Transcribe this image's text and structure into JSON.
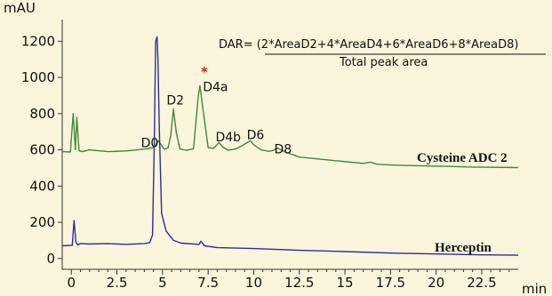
{
  "chart_data": {
    "type": "line",
    "title": "",
    "xlabel": "min",
    "ylabel": "mAU",
    "xlim": [
      -0.5,
      24.5
    ],
    "ylim": [
      -60,
      1300
    ],
    "x_ticks": [
      0,
      2.5,
      5,
      7.5,
      10,
      12.5,
      15,
      17.5,
      20,
      22.5
    ],
    "x_tick_labels": [
      "0",
      "2.5",
      "5",
      "7.5",
      "10",
      "12.5",
      "15",
      "17.5",
      "20",
      "22.5"
    ],
    "y_ticks": [
      0,
      200,
      400,
      600,
      800,
      1000,
      1200
    ],
    "y_tick_labels": [
      "0",
      "200",
      "400",
      "600",
      "800",
      "1000",
      "1200"
    ],
    "formula": {
      "numerator": "DAR= (2*AreaD2+4*AreaD4+6*AreaD6+8*AreaD8)",
      "denominator": "Total peak area"
    },
    "asterisk": "*",
    "peak_labels": [
      {
        "text": "D0",
        "x": 4.3,
        "y": 615
      },
      {
        "text": "D2",
        "x": 5.7,
        "y": 850
      },
      {
        "text": "D4a",
        "x": 7.9,
        "y": 925
      },
      {
        "text": "D4b",
        "x": 8.6,
        "y": 648
      },
      {
        "text": "D6",
        "x": 10.1,
        "y": 660
      },
      {
        "text": "D8",
        "x": 11.6,
        "y": 580
      }
    ],
    "series": [
      {
        "name": "Cysteine ADC 2",
        "color": "#3f8a3a",
        "x": [
          -0.5,
          -0.05,
          0.1,
          0.22,
          0.3,
          0.42,
          0.6,
          1.0,
          2.0,
          3.0,
          4.0,
          4.35,
          4.5,
          4.62,
          4.75,
          4.9,
          5.1,
          5.3,
          5.45,
          5.6,
          5.75,
          5.95,
          6.3,
          6.7,
          6.95,
          7.05,
          7.25,
          7.5,
          7.8,
          8.0,
          8.1,
          8.3,
          8.6,
          9.0,
          9.4,
          9.65,
          9.8,
          10.0,
          10.4,
          10.8,
          11.05,
          11.3,
          11.8,
          12.5,
          14.0,
          16.0,
          16.4,
          16.8,
          18.0,
          20.0,
          22.0,
          24.5
        ],
        "y": [
          590,
          588,
          800,
          600,
          780,
          596,
          590,
          600,
          590,
          594,
          604,
          610,
          612,
          625,
          650,
          632,
          604,
          610,
          680,
          825,
          695,
          605,
          598,
          605,
          890,
          955,
          800,
          612,
          608,
          630,
          640,
          615,
          598,
          605,
          625,
          640,
          650,
          628,
          600,
          592,
          596,
          610,
          585,
          560,
          545,
          525,
          532,
          520,
          515,
          510,
          505,
          502
        ]
      },
      {
        "name": "Herceptin",
        "color": "#2a2f9c",
        "x": [
          -0.5,
          0.05,
          0.15,
          0.25,
          0.35,
          0.5,
          1.0,
          2.0,
          3.0,
          4.0,
          4.3,
          4.45,
          4.55,
          4.62,
          4.7,
          4.75,
          4.82,
          4.95,
          5.2,
          5.6,
          6.0,
          7.0,
          7.1,
          7.3,
          8.0,
          10.0,
          12.5,
          15.0,
          17.5,
          20.0,
          22.5,
          24.5
        ],
        "y": [
          70,
          72,
          210,
          90,
          75,
          82,
          80,
          82,
          78,
          82,
          88,
          130,
          650,
          1200,
          1225,
          1100,
          720,
          250,
          150,
          100,
          85,
          78,
          95,
          70,
          60,
          55,
          45,
          38,
          30,
          25,
          20,
          18
        ]
      }
    ]
  }
}
